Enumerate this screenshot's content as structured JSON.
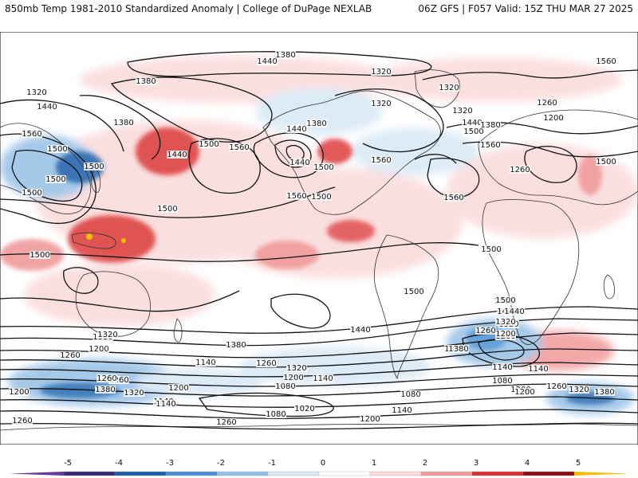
{
  "header": {
    "left": "850mb Temp 1981-2010 Standardized Anomaly | College of DuPage NEXLAB",
    "right": "06Z GFS | F057 Valid: 15Z THU MAR 27 2025"
  },
  "contour_labels": [
    {
      "text": "1380"
    },
    {
      "text": "1440"
    },
    {
      "text": "1320"
    },
    {
      "text": "1380"
    },
    {
      "text": "1320"
    },
    {
      "text": "1440"
    },
    {
      "text": "1380"
    },
    {
      "text": "1560"
    },
    {
      "text": "1500"
    },
    {
      "text": "1500"
    },
    {
      "text": "1500"
    },
    {
      "text": "1440"
    },
    {
      "text": "1500"
    },
    {
      "text": "1560"
    },
    {
      "text": "1440"
    },
    {
      "text": "1380"
    },
    {
      "text": "1440"
    },
    {
      "text": "1500"
    },
    {
      "text": "1560"
    },
    {
      "text": "1320"
    },
    {
      "text": "1320"
    },
    {
      "text": "1320"
    },
    {
      "text": "1440"
    },
    {
      "text": "1380"
    },
    {
      "text": "1500"
    },
    {
      "text": "1560"
    },
    {
      "text": "1560"
    },
    {
      "text": "1260"
    },
    {
      "text": "1200"
    },
    {
      "text": "1260"
    },
    {
      "text": "1500"
    },
    {
      "text": "1500"
    },
    {
      "text": "1500"
    },
    {
      "text": "1500"
    },
    {
      "text": "1500"
    },
    {
      "text": "1560"
    },
    {
      "text": "1560"
    },
    {
      "text": "1500"
    },
    {
      "text": "1500"
    },
    {
      "text": "1500"
    },
    {
      "text": "1440"
    },
    {
      "text": "1440"
    },
    {
      "text": "1320"
    },
    {
      "text": "1380"
    },
    {
      "text": "1260"
    },
    {
      "text": "1260"
    },
    {
      "text": "1140"
    },
    {
      "text": "1140"
    },
    {
      "text": "1380"
    },
    {
      "text": "1260"
    },
    {
      "text": "1320"
    },
    {
      "text": "1200"
    },
    {
      "text": "1260"
    },
    {
      "text": "1320"
    },
    {
      "text": "1380"
    },
    {
      "text": "1200"
    },
    {
      "text": "1140"
    },
    {
      "text": "1260"
    },
    {
      "text": "1320"
    },
    {
      "text": "1200"
    },
    {
      "text": "1140"
    },
    {
      "text": "1080"
    },
    {
      "text": "1020"
    },
    {
      "text": "1080"
    },
    {
      "text": "1140"
    },
    {
      "text": "1200"
    },
    {
      "text": "1260"
    },
    {
      "text": "1080"
    },
    {
      "text": "1200"
    },
    {
      "text": "1500"
    },
    {
      "text": "1440"
    },
    {
      "text": "1320"
    },
    {
      "text": "1200"
    },
    {
      "text": "1380"
    },
    {
      "text": "1140"
    },
    {
      "text": "1080"
    },
    {
      "text": "1200"
    },
    {
      "text": "1260"
    },
    {
      "text": "1320"
    },
    {
      "text": "1380"
    },
    {
      "text": "1260"
    },
    {
      "text": "1380"
    },
    {
      "text": "1140"
    },
    {
      "text": "1260"
    },
    {
      "text": "1200"
    },
    {
      "text": "1080"
    }
  ],
  "colorbar": {
    "ticks": [
      "-5",
      "-4",
      "-3",
      "-2",
      "-1",
      "0",
      "1",
      "2",
      "3",
      "4",
      "5"
    ],
    "bins": [
      {
        "from": -5,
        "to": -4,
        "color": "#3a2878"
      },
      {
        "from": -4,
        "to": -3,
        "color": "#1f5fa8"
      },
      {
        "from": -3,
        "to": -2,
        "color": "#4a90d0"
      },
      {
        "from": -2,
        "to": -1,
        "color": "#95c0e6"
      },
      {
        "from": -1,
        "to": 0,
        "color": "#d8e8f5"
      },
      {
        "from": 0,
        "to": 1,
        "color": "#ffffff"
      },
      {
        "from": 1,
        "to": 2,
        "color": "#fadada"
      },
      {
        "from": 2,
        "to": 3,
        "color": "#f09a9a"
      },
      {
        "from": 3,
        "to": 4,
        "color": "#d93030"
      },
      {
        "from": 4,
        "to": 5,
        "color": "#8a0f18"
      },
      {
        "from": 5,
        "to": 6,
        "color": "#f0b800"
      }
    ],
    "low_end_color": "#6a3a9a",
    "high_end_color": "#f0c000"
  },
  "colors": {
    "contour": "#111111",
    "coast": "#333333"
  }
}
